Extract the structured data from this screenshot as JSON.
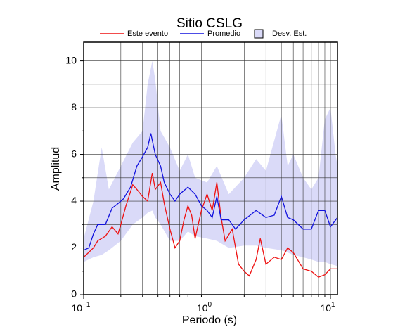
{
  "chart_data": {
    "type": "line",
    "title": "Sitio CSLG",
    "xlabel": "Periodo (s)",
    "ylabel": "Amplitud",
    "xlog": true,
    "grid": true,
    "xlim": [
      0.1,
      11.4
    ],
    "ylim": [
      0,
      10.8
    ],
    "xticks": [
      {
        "value": 0.1,
        "label": "10",
        "exponent": "−1"
      },
      {
        "value": 1,
        "label": "10",
        "exponent": "0"
      },
      {
        "value": 10,
        "label": "10",
        "exponent": "1"
      }
    ],
    "xminor": [
      0.2,
      0.3,
      0.4,
      0.5,
      0.6,
      0.7,
      0.8,
      0.9,
      2,
      3,
      4,
      5,
      6,
      7,
      8,
      9
    ],
    "yticks": [
      0,
      2,
      4,
      6,
      8,
      10
    ],
    "yminor": [
      1,
      3,
      5,
      7,
      9
    ],
    "series": [
      {
        "name": "Este evento",
        "color": "#ee1111",
        "x": [
          0.1,
          0.12,
          0.13,
          0.15,
          0.17,
          0.19,
          0.2,
          0.22,
          0.25,
          0.27,
          0.3,
          0.33,
          0.36,
          0.38,
          0.42,
          0.45,
          0.5,
          0.55,
          0.6,
          0.65,
          0.7,
          0.75,
          0.8,
          0.9,
          1.0,
          1.1,
          1.2,
          1.3,
          1.4,
          1.6,
          1.8,
          2.0,
          2.2,
          2.5,
          2.7,
          3.0,
          3.5,
          4.0,
          4.5,
          5.0,
          6.0,
          7.0,
          8.0,
          9.0,
          10,
          11.4
        ],
        "values": [
          1.6,
          2.0,
          2.3,
          2.5,
          2.9,
          2.6,
          3.0,
          3.8,
          4.7,
          4.5,
          4.2,
          4.0,
          5.2,
          4.5,
          4.8,
          3.9,
          2.8,
          2.0,
          2.3,
          3.2,
          3.8,
          3.4,
          2.4,
          3.6,
          4.3,
          3.6,
          4.8,
          3.3,
          2.3,
          2.8,
          1.3,
          1.0,
          0.8,
          1.5,
          2.4,
          1.3,
          1.6,
          1.5,
          2.0,
          1.8,
          1.1,
          1.0,
          0.75,
          0.85,
          1.1,
          1.1
        ]
      },
      {
        "name": "Promedio",
        "color": "#1111dd",
        "x": [
          0.1,
          0.11,
          0.12,
          0.13,
          0.15,
          0.17,
          0.19,
          0.21,
          0.24,
          0.27,
          0.3,
          0.33,
          0.35,
          0.38,
          0.42,
          0.45,
          0.5,
          0.55,
          0.6,
          0.7,
          0.8,
          0.9,
          1.0,
          1.1,
          1.2,
          1.3,
          1.5,
          1.7,
          2.0,
          2.5,
          3.0,
          3.5,
          4.0,
          4.5,
          5.0,
          6.0,
          7.0,
          8.0,
          9.0,
          10,
          11.4
        ],
        "values": [
          1.9,
          2.0,
          2.6,
          3.0,
          3.0,
          3.7,
          3.9,
          4.1,
          4.6,
          5.5,
          5.9,
          6.3,
          6.9,
          6.0,
          5.5,
          4.8,
          4.3,
          4.0,
          4.3,
          4.6,
          4.3,
          3.8,
          3.6,
          3.3,
          4.2,
          3.2,
          3.2,
          2.8,
          3.2,
          3.6,
          3.3,
          3.4,
          4.2,
          3.3,
          3.2,
          2.8,
          2.8,
          3.6,
          3.6,
          2.9,
          3.3
        ]
      }
    ],
    "band": {
      "name": "Desv. Est.",
      "color": "#dadaf8",
      "x": [
        0.1,
        0.12,
        0.14,
        0.16,
        0.2,
        0.25,
        0.3,
        0.33,
        0.36,
        0.38,
        0.42,
        0.5,
        0.6,
        0.7,
        0.8,
        1.0,
        1.2,
        1.5,
        2.0,
        2.5,
        3.0,
        4.0,
        4.5,
        5.0,
        6.0,
        7.0,
        8.0,
        9.0,
        10,
        11,
        11.4
      ],
      "lower": [
        1.4,
        1.6,
        1.7,
        1.9,
        2.3,
        3.0,
        3.3,
        3.5,
        3.6,
        3.3,
        3.0,
        2.3,
        2.3,
        2.7,
        2.5,
        2.4,
        2.3,
        2.0,
        2.1,
        2.1,
        2.0,
        1.9,
        1.8,
        1.7,
        1.6,
        1.5,
        1.4,
        1.4,
        1.3,
        1.25,
        1.2
      ],
      "upper": [
        2.4,
        4.0,
        6.3,
        4.5,
        5.5,
        6.5,
        7.0,
        9.0,
        10.0,
        9.2,
        7.0,
        6.3,
        5.3,
        6.0,
        5.0,
        4.8,
        5.5,
        4.3,
        5.0,
        5.8,
        5.3,
        7.7,
        5.5,
        6.0,
        5.0,
        4.5,
        5.0,
        7.5,
        8.0,
        6.0,
        5.5
      ]
    }
  }
}
